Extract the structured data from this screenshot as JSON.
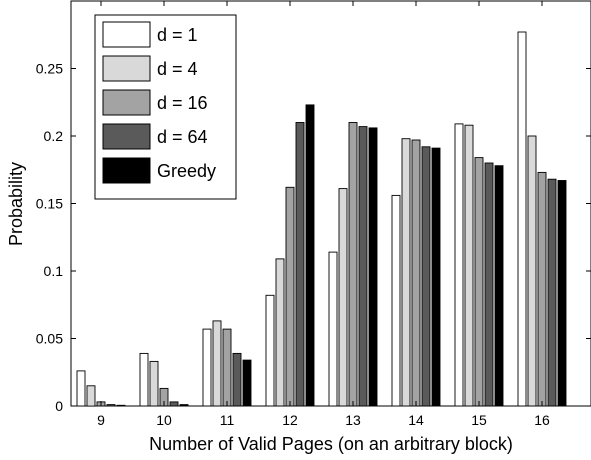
{
  "chart_data": {
    "type": "bar",
    "title": "",
    "xlabel": "Number of Valid Pages (on an arbitrary block)",
    "ylabel": "Probability",
    "categories": [
      "9",
      "10",
      "11",
      "12",
      "13",
      "14",
      "15",
      "16"
    ],
    "ylim": [
      0,
      0.3
    ],
    "yticks": [
      "0",
      "0.05",
      "0.1",
      "0.15",
      "0.2",
      "0.25"
    ],
    "grid": false,
    "legend_position": "top-left",
    "series": [
      {
        "name": "d = 1",
        "color": "#ffffff",
        "values": [
          0.026,
          0.039,
          0.057,
          0.082,
          0.114,
          0.156,
          0.209,
          0.277
        ]
      },
      {
        "name": "d = 4",
        "color": "#d9d9d9",
        "values": [
          0.015,
          0.033,
          0.063,
          0.109,
          0.161,
          0.198,
          0.208,
          0.2
        ]
      },
      {
        "name": "d = 16",
        "color": "#a3a3a3",
        "values": [
          0.003,
          0.013,
          0.057,
          0.162,
          0.21,
          0.197,
          0.184,
          0.173
        ]
      },
      {
        "name": "d = 64",
        "color": "#5a5a5a",
        "values": [
          0.001,
          0.003,
          0.039,
          0.21,
          0.207,
          0.192,
          0.18,
          0.168
        ]
      },
      {
        "name": "Greedy",
        "color": "#000000",
        "values": [
          0.0005,
          0.001,
          0.034,
          0.223,
          0.206,
          0.191,
          0.178,
          0.167
        ]
      }
    ]
  }
}
